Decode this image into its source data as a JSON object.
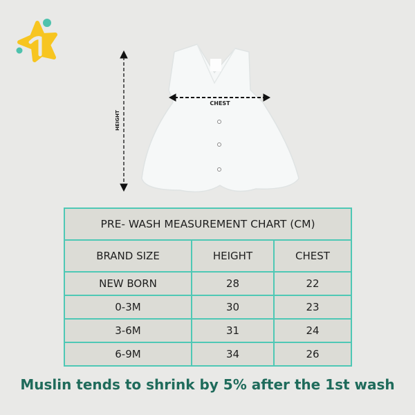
{
  "logo": {
    "icon": "star-one-logo",
    "colors": {
      "star": "#f7c520",
      "dots": "#4ec2ad"
    }
  },
  "diagram": {
    "chest_label": "CHEST",
    "height_label": "HEIGHT"
  },
  "table": {
    "title": "PRE- WASH MEASUREMENT CHART (CM)",
    "headers": [
      "BRAND SIZE",
      "HEIGHT",
      "CHEST"
    ],
    "rows": [
      [
        "NEW BORN",
        "28",
        "22"
      ],
      [
        "0-3M",
        "30",
        "23"
      ],
      [
        "3-6M",
        "31",
        "24"
      ],
      [
        "6-9M",
        "34",
        "26"
      ]
    ],
    "border_color": "#4ec8b5"
  },
  "note": "Muslin tends to shrink by 5% after the 1st wash"
}
